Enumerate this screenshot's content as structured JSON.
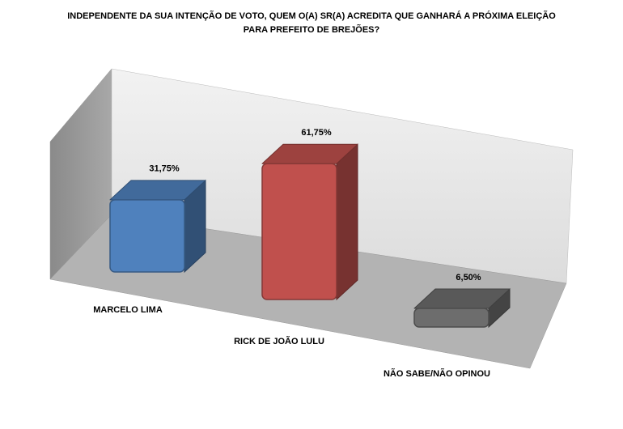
{
  "chart_data": {
    "type": "bar3d",
    "title": [
      "INDEPENDENTE DA SUA INTENÇÃO DE VOTO, QUEM O(A) SR(A) ACREDITA QUE GANHARÁ A PRÓXIMA ELEIÇÃO",
      "PARA PREFEITO DE BREJÕES?"
    ],
    "categories": [
      "MARCELO LIMA",
      "RICK DE JOÃO LULU",
      "NÃO SABE/NÃO OPINOU"
    ],
    "values": [
      31.75,
      61.75,
      6.5
    ],
    "value_labels": [
      "31,75%",
      "61,75%",
      "6,50%"
    ],
    "colors": [
      "#4f81bd",
      "#c0504d",
      "#6d6d6d"
    ]
  }
}
